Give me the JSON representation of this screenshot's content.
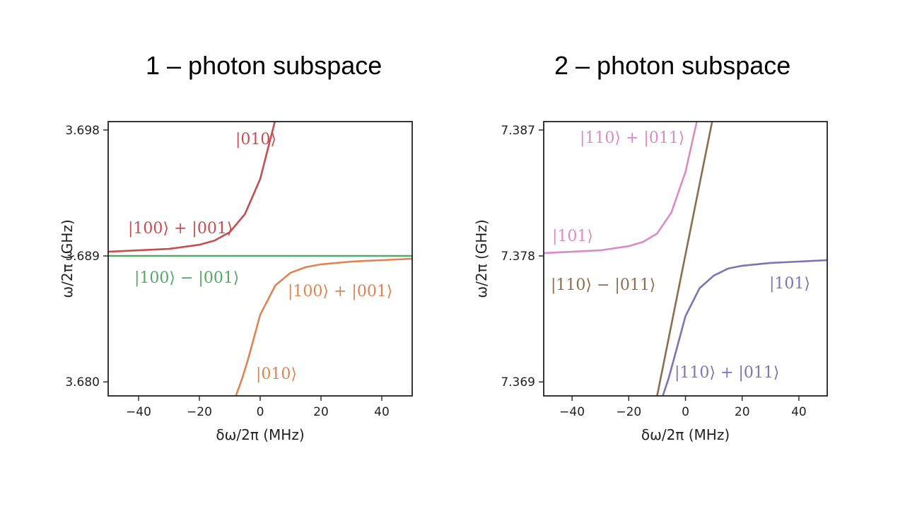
{
  "titles": {
    "left": "1 – photon subspace",
    "right": "2 – photon subspace"
  },
  "chart_data": [
    {
      "type": "line",
      "title": "1 – photon subspace",
      "xlabel": "δω/2π (MHz)",
      "ylabel": "ω/2π (GHz)",
      "xlim": [
        -50,
        50
      ],
      "ylim": [
        3.679,
        3.6986
      ],
      "xticks": [
        -40,
        -20,
        0,
        20,
        40
      ],
      "xtick_labels": [
        "−40",
        "−20",
        "0",
        "20",
        "40"
      ],
      "yticks": [
        3.68,
        3.689,
        3.698
      ],
      "ytick_labels": [
        "3.680",
        "3.689",
        "3.698"
      ],
      "grid": false,
      "legend": "none",
      "series": [
        {
          "color": "#c44e52",
          "x": [
            -50,
            -40,
            -30,
            -20,
            -15,
            -10,
            -5,
            0,
            2,
            4,
            6,
            8
          ],
          "y": [
            3.6893,
            3.6894,
            3.6895,
            3.6898,
            3.6901,
            3.6907,
            3.692,
            3.6945,
            3.6962,
            3.6979,
            3.6996,
            3.7014
          ]
        },
        {
          "color": "#55a868",
          "x": [
            -50,
            50
          ],
          "y": [
            3.689,
            3.689
          ]
        },
        {
          "color": "#dd8452",
          "x": [
            -8,
            -6,
            -4,
            -2,
            0,
            5,
            10,
            15,
            20,
            30,
            40,
            50
          ],
          "y": [
            3.679,
            3.6802,
            3.6816,
            3.6832,
            3.6848,
            3.6869,
            3.6878,
            3.6882,
            3.6884,
            3.6886,
            3.6887,
            3.6888
          ]
        }
      ],
      "annotations": [
        {
          "text": "|010⟩",
          "color": "#c44e52"
        },
        {
          "text": "|100⟩ + |001⟩",
          "color": "#c44e52"
        },
        {
          "text": "|100⟩ − |001⟩",
          "color": "#55a868"
        },
        {
          "text": "|100⟩ + |001⟩",
          "color": "#dd8452"
        },
        {
          "text": "|010⟩",
          "color": "#dd8452"
        }
      ]
    },
    {
      "type": "line",
      "title": "2 – photon subspace",
      "xlabel": "δω/2π (MHz)",
      "ylabel": "ω/2π (GHz)",
      "xlim": [
        -50,
        50
      ],
      "ylim": [
        7.368,
        7.3876
      ],
      "xticks": [
        -40,
        -20,
        0,
        20,
        40
      ],
      "xtick_labels": [
        "−40",
        "−20",
        "0",
        "20",
        "40"
      ],
      "yticks": [
        7.369,
        7.378,
        7.387
      ],
      "ytick_labels": [
        "7.369",
        "7.378",
        "7.387"
      ],
      "grid": false,
      "legend": "none",
      "series": [
        {
          "color": "#da8bc3",
          "x": [
            -50,
            -40,
            -30,
            -20,
            -15,
            -10,
            -5,
            0,
            2,
            4,
            6,
            8
          ],
          "y": [
            7.3782,
            7.3783,
            7.3784,
            7.3787,
            7.379,
            7.3796,
            7.3811,
            7.384,
            7.3858,
            7.3876,
            7.3894,
            7.3912
          ]
        },
        {
          "color": "#8c6d4f",
          "x": [
            -10,
            10
          ],
          "y": [
            7.368,
            7.3882
          ]
        },
        {
          "color": "#8172b3",
          "x": [
            -8,
            -6,
            -4,
            -2,
            0,
            5,
            10,
            15,
            20,
            30,
            40,
            50
          ],
          "y": [
            7.368,
            7.3692,
            7.3707,
            7.3722,
            7.3737,
            7.3757,
            7.3766,
            7.3771,
            7.3773,
            7.3775,
            7.3776,
            7.3777
          ]
        }
      ],
      "annotations": [
        {
          "text": "|110⟩ + |011⟩",
          "color": "#da8bc3"
        },
        {
          "text": "|101⟩",
          "color": "#da8bc3"
        },
        {
          "text": "|110⟩ − |011⟩",
          "color": "#8c6d4f"
        },
        {
          "text": "|101⟩",
          "color": "#8172b3"
        },
        {
          "text": "|110⟩ + |011⟩",
          "color": "#8172b3"
        }
      ]
    }
  ]
}
